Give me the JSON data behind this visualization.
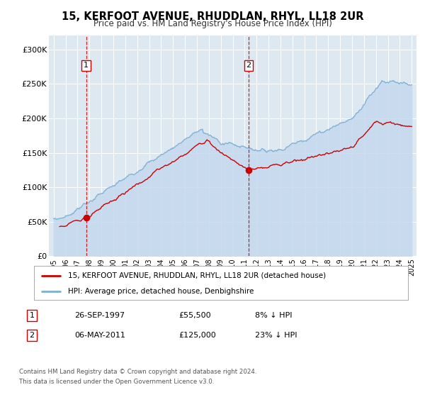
{
  "title": "15, KERFOOT AVENUE, RHUDDLAN, RHYL, LL18 2UR",
  "subtitle": "Price paid vs. HM Land Registry's House Price Index (HPI)",
  "legend_entry1": "15, KERFOOT AVENUE, RHUDDLAN, RHYL, LL18 2UR (detached house)",
  "legend_entry2": "HPI: Average price, detached house, Denbighshire",
  "transaction1_date": "26-SEP-1997",
  "transaction1_price": "£55,500",
  "transaction1_hpi": "8% ↓ HPI",
  "transaction2_date": "06-MAY-2011",
  "transaction2_price": "£125,000",
  "transaction2_hpi": "23% ↓ HPI",
  "footer1": "Contains HM Land Registry data © Crown copyright and database right 2024.",
  "footer2": "This data is licensed under the Open Government Licence v3.0.",
  "price_color": "#cc0000",
  "hpi_color": "#7bafd4",
  "hpi_fill_color": "#c5d9ee",
  "background_color": "#ffffff",
  "plot_bg_color": "#dde8f0",
  "ylim": [
    0,
    320000
  ],
  "yticks": [
    0,
    50000,
    100000,
    150000,
    200000,
    250000,
    300000
  ],
  "ytick_labels": [
    "£0",
    "£50K",
    "£100K",
    "£150K",
    "£200K",
    "£250K",
    "£300K"
  ],
  "transaction1_x": 1997.73,
  "transaction1_y": 55500,
  "transaction2_x": 2011.34,
  "transaction2_y": 125000,
  "xmin": 1994.6,
  "xmax": 2025.4
}
